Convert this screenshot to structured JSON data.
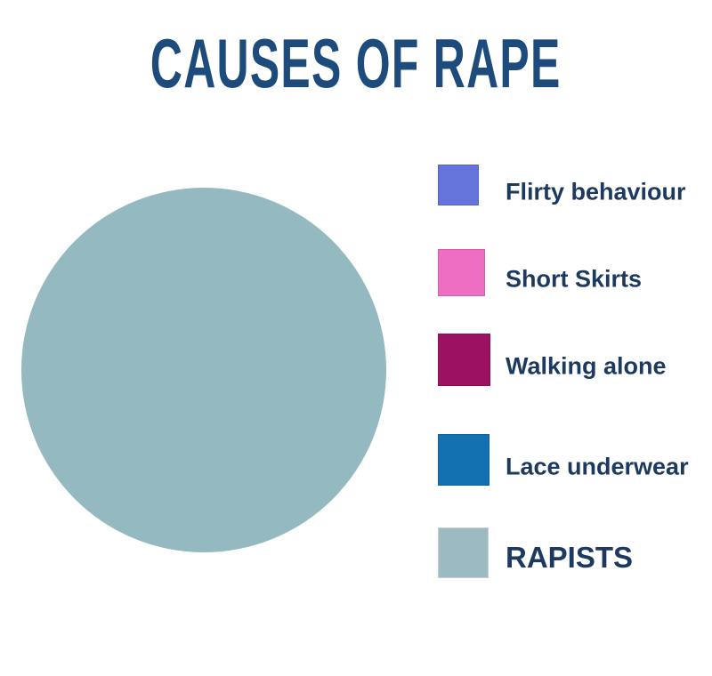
{
  "colors": {
    "page_bg": "#ffffff",
    "title_color": "#1d4b7c",
    "legend_text_color": "#1c3a5f"
  },
  "chart_data": {
    "type": "pie",
    "title": "CAUSES OF RAPE",
    "legend_position": "right",
    "slices": [
      {
        "label": "Flirty behaviour",
        "value": 0,
        "color": "#6474da"
      },
      {
        "label": "Short Skirts",
        "value": 0,
        "color": "#ee6ec4"
      },
      {
        "label": "Walking alone",
        "value": 0,
        "color": "#9c1161"
      },
      {
        "label": "Lace underwear",
        "value": 0,
        "color": "#1371b1"
      },
      {
        "label": "RAPISTS",
        "value": 100,
        "color": "#9bbac1"
      }
    ],
    "pie_fill_color": "#94b9c1"
  }
}
